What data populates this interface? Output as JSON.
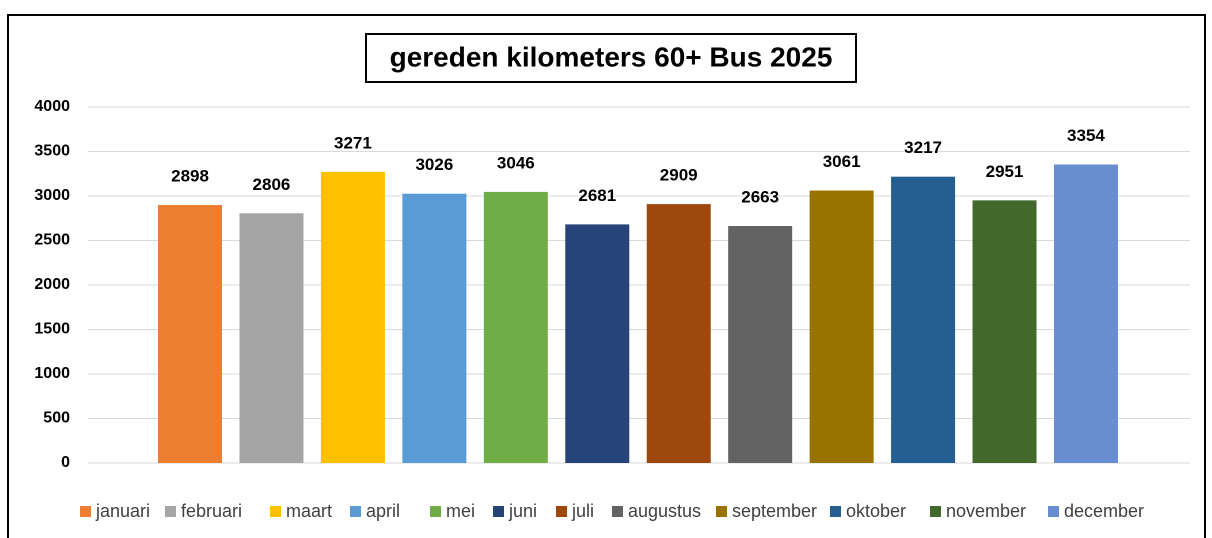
{
  "chart_data": {
    "type": "bar",
    "title": "gereden kilometers 60+ Bus 2025",
    "categories": [
      "januari",
      "februari",
      "maart",
      "april",
      "mei",
      "juni",
      "juli",
      "augustus",
      "september",
      "oktober",
      "november",
      "december"
    ],
    "values": [
      2898,
      2806,
      3271,
      3026,
      3046,
      2681,
      2909,
      2663,
      3061,
      3217,
      2951,
      3354
    ],
    "colors": [
      "#ed7d31",
      "#a5a5a5",
      "#ffc000",
      "#5b9bd5",
      "#70ad47",
      "#264478",
      "#9e480e",
      "#636363",
      "#997300",
      "#255e91",
      "#43682b",
      "#698ed0"
    ],
    "ylim": [
      0,
      4000
    ],
    "yticks": [
      0,
      500,
      1000,
      1500,
      2000,
      2500,
      3000,
      3500,
      4000
    ],
    "grid": true,
    "legend": "bottom"
  }
}
